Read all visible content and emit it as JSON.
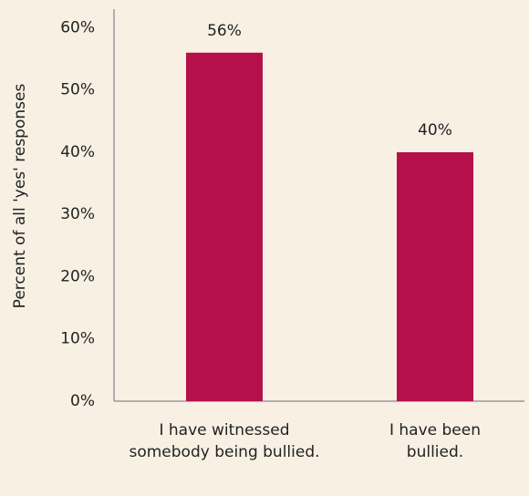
{
  "chart_data": {
    "type": "bar",
    "categories": [
      "I have witnessed somebody being bullied.",
      "I have been bullied."
    ],
    "values": [
      56,
      40
    ],
    "value_labels": [
      "56%",
      "40%"
    ],
    "color": "#b5104a",
    "y_label": "Percent of all 'yes' responses",
    "ylim": [
      0,
      63
    ],
    "yticks": [
      {
        "value": 0,
        "label": "0%"
      },
      {
        "value": 10,
        "label": "10%"
      },
      {
        "value": 20,
        "label": "20%"
      },
      {
        "value": 30,
        "label": "30%"
      },
      {
        "value": 40,
        "label": "40%"
      },
      {
        "value": 50,
        "label": "50%"
      },
      {
        "value": 60,
        "label": "60%"
      }
    ],
    "grid": false
  }
}
